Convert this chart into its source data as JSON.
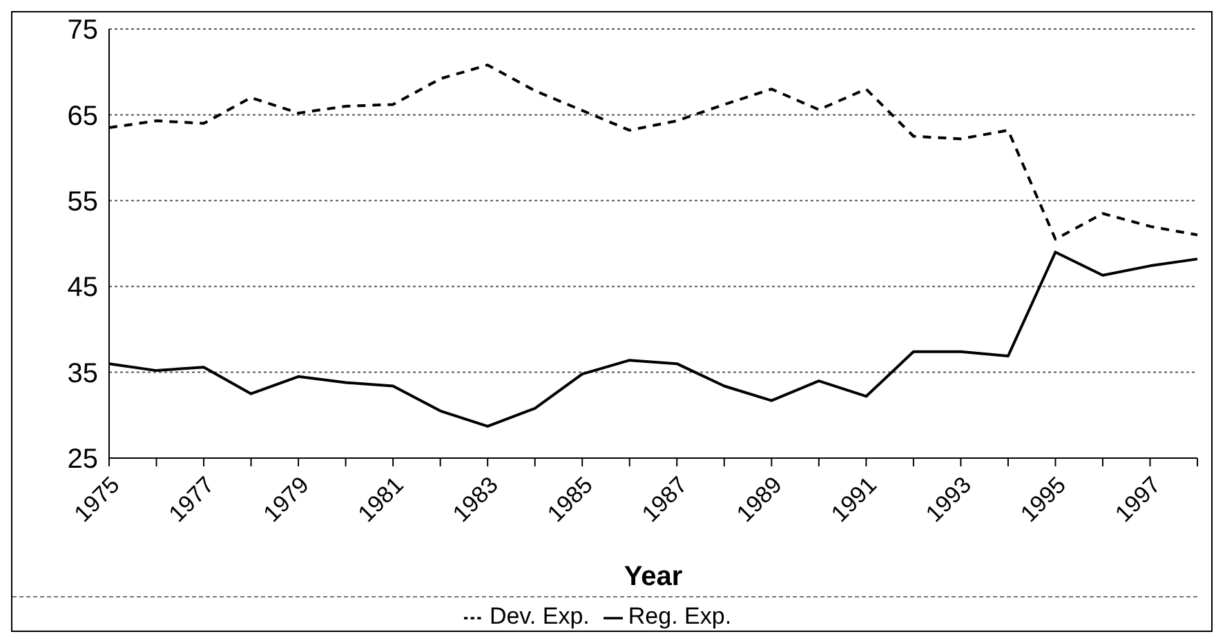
{
  "chart_data": {
    "type": "line",
    "xlabel": "Year",
    "categories": [
      "1975",
      null,
      "1977",
      null,
      "1979",
      null,
      "1981",
      null,
      "1983",
      null,
      "1985",
      null,
      "1987",
      null,
      "1989",
      null,
      "1991",
      null,
      "1993",
      null,
      "1995",
      null,
      "1997",
      null
    ],
    "series": [
      {
        "name": "Reg. Exp.",
        "color": "#000000",
        "line_style": "solid",
        "values": [
          36,
          35.2,
          35.6,
          32.5,
          34.5,
          33.8,
          33.4,
          30.5,
          28.7,
          30.8,
          34.8,
          36.4,
          36,
          33.4,
          31.7,
          34,
          32.2,
          37.4,
          37.4,
          36.9,
          49,
          46.3,
          47.4,
          48.2
        ]
      },
      {
        "name": "Dev. Exp.",
        "color": "#000000",
        "line_style": "dashed",
        "values": [
          63.5,
          64.3,
          64,
          67,
          65.2,
          66,
          66.2,
          69.2,
          70.8,
          67.8,
          65.5,
          63.2,
          64.3,
          66.2,
          68,
          65.6,
          68,
          62.5,
          62.2,
          63.2,
          50.5,
          53.5,
          52,
          51
        ]
      }
    ],
    "ylim": [
      25,
      75
    ],
    "yticks": [
      25,
      35,
      45,
      55,
      65,
      75
    ],
    "grid": "y",
    "legend": "bottom",
    "marker": "none"
  }
}
